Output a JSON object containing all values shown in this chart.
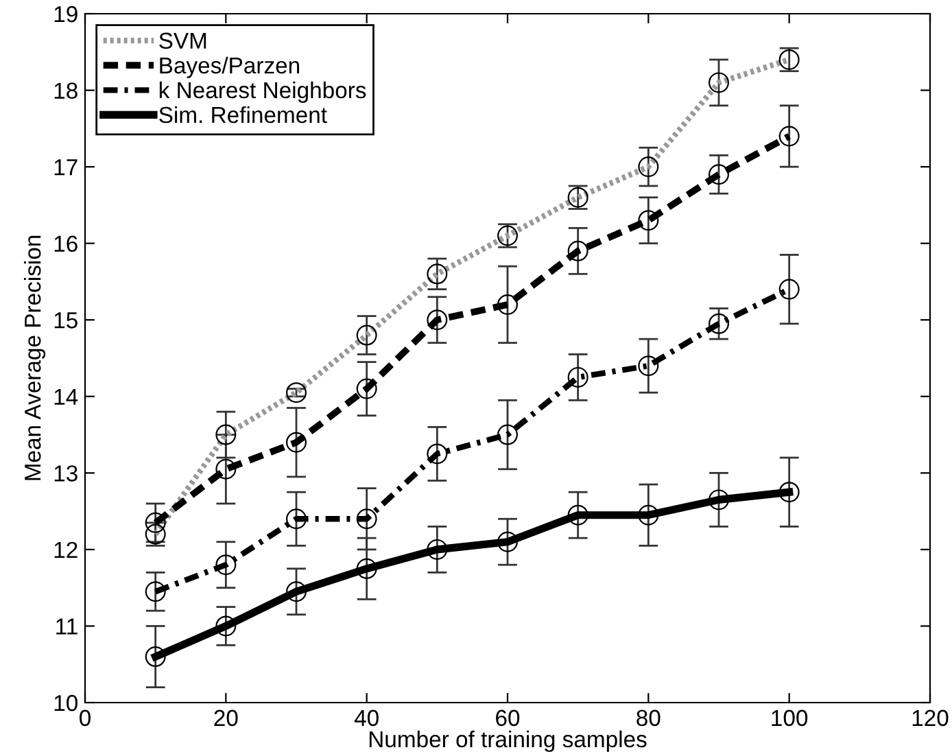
{
  "chart_data": {
    "type": "line",
    "xlabel": "Number of training samples",
    "ylabel": "Mean Average Precision",
    "x": [
      10,
      20,
      30,
      40,
      50,
      60,
      70,
      80,
      90,
      100
    ],
    "xlim": [
      0,
      120
    ],
    "xticks": [
      0,
      20,
      40,
      60,
      80,
      100,
      120
    ],
    "ylim": [
      10,
      19
    ],
    "yticks": [
      10,
      11,
      12,
      13,
      14,
      15,
      16,
      17,
      18,
      19
    ],
    "grid": false,
    "legend": "top left",
    "marker": "circle",
    "series": [
      {
        "name": "SVM",
        "color": "#999999",
        "line_style": "dotted",
        "values": [
          12.2,
          13.5,
          14.05,
          14.8,
          15.6,
          16.1,
          16.6,
          17.0,
          18.1,
          18.4
        ],
        "errors": [
          0.15,
          0.3,
          0.05,
          0.25,
          0.2,
          0.15,
          0.15,
          0.25,
          0.3,
          0.15
        ]
      },
      {
        "name": "Bayes/Parzen",
        "color": "#000000",
        "line_style": "dashed",
        "values": [
          12.35,
          13.05,
          13.4,
          14.1,
          15.0,
          15.2,
          15.9,
          16.3,
          16.9,
          17.4
        ],
        "errors": [
          0.25,
          0.45,
          0.45,
          0.35,
          0.3,
          0.5,
          0.3,
          0.3,
          0.25,
          0.4
        ]
      },
      {
        "name": "k Nearest Neighbors",
        "color": "#000000",
        "line_style": "dashdot",
        "values": [
          11.45,
          11.8,
          12.4,
          12.4,
          13.25,
          13.5,
          14.25,
          14.4,
          14.95,
          15.4
        ],
        "errors": [
          0.25,
          0.3,
          0.35,
          0.4,
          0.35,
          0.45,
          0.3,
          0.35,
          0.2,
          0.45
        ]
      },
      {
        "name": "Sim. Refinement",
        "color": "#000000",
        "line_style": "solid",
        "values": [
          10.6,
          11.0,
          11.45,
          11.75,
          12.0,
          12.1,
          12.45,
          12.45,
          12.65,
          12.75
        ],
        "errors": [
          0.4,
          0.25,
          0.3,
          0.4,
          0.3,
          0.3,
          0.3,
          0.4,
          0.35,
          0.45
        ]
      }
    ]
  }
}
